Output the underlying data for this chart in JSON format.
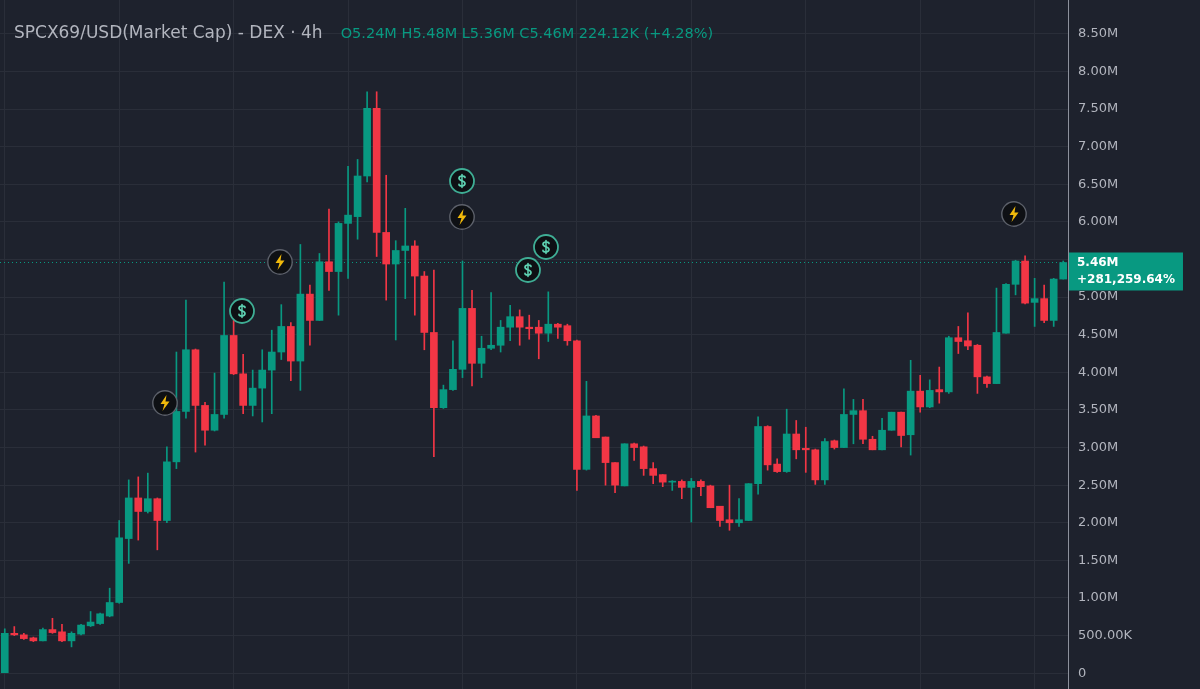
{
  "chart_data": {
    "type": "candlestick",
    "title": "SPCX69/USD(Market Cap) - DEX · 4h",
    "annotations": [
      "O5.24M H5.48M L5.36M C5.46M 224.12K (+4.28%)"
    ],
    "categories": [
      null,
      null,
      null,
      null,
      null,
      null,
      null,
      null,
      null,
      null,
      null,
      null,
      null,
      null,
      null,
      null,
      null,
      null,
      null,
      null,
      null,
      null,
      null,
      null,
      null,
      null,
      null,
      null,
      null,
      null,
      null,
      null,
      null,
      null,
      null,
      null,
      null,
      null,
      null,
      null,
      null,
      null,
      null,
      null,
      null,
      null,
      null,
      null,
      null,
      null,
      null,
      null,
      null,
      null,
      null,
      null,
      null,
      null,
      null,
      null,
      null,
      null,
      null,
      null,
      null,
      null,
      null,
      null,
      null,
      null,
      null,
      null,
      null,
      null,
      null,
      null,
      null,
      null,
      null,
      null,
      null,
      null,
      null,
      null,
      null,
      null,
      null,
      null,
      null,
      null,
      null,
      null,
      null,
      null,
      null,
      null,
      null,
      null,
      null,
      null,
      null,
      null,
      null,
      null,
      null,
      null,
      null,
      null,
      null,
      null,
      null,
      null
    ],
    "ohlc": [
      [
        0,
        590000,
        0,
        530000
      ],
      [
        530000,
        620000,
        500000,
        510000
      ],
      [
        510000,
        530000,
        450000,
        460000
      ],
      [
        470000,
        480000,
        420000,
        430000
      ],
      [
        430000,
        600000,
        430000,
        580000
      ],
      [
        580000,
        730000,
        530000,
        540000
      ],
      [
        550000,
        650000,
        420000,
        430000
      ],
      [
        430000,
        550000,
        350000,
        530000
      ],
      [
        520000,
        650000,
        510000,
        640000
      ],
      [
        630000,
        820000,
        620000,
        680000
      ],
      [
        660000,
        800000,
        650000,
        790000
      ],
      [
        760000,
        1130000,
        750000,
        940000
      ],
      [
        940000,
        2030000,
        930000,
        1800000
      ],
      [
        1790000,
        2570000,
        1460000,
        2330000
      ],
      [
        2330000,
        2610000,
        1770000,
        2150000
      ],
      [
        2150000,
        2660000,
        2130000,
        2320000
      ],
      [
        2320000,
        2330000,
        1640000,
        2030000
      ],
      [
        2030000,
        3010000,
        2000000,
        2810000
      ],
      [
        2810000,
        4270000,
        2720000,
        3480000
      ],
      [
        3480000,
        4960000,
        3390000,
        4300000
      ],
      [
        4300000,
        4310000,
        2940000,
        3560000
      ],
      [
        3560000,
        3600000,
        3030000,
        3230000
      ],
      [
        3230000,
        3990000,
        3220000,
        3440000
      ],
      [
        3440000,
        5200000,
        3390000,
        4490000
      ],
      [
        4490000,
        4690000,
        3970000,
        3980000
      ],
      [
        3980000,
        4240000,
        3450000,
        3560000
      ],
      [
        3560000,
        4030000,
        3420000,
        3790000
      ],
      [
        3790000,
        4300000,
        3340000,
        4030000
      ],
      [
        4030000,
        4560000,
        3450000,
        4270000
      ],
      [
        4270000,
        4900000,
        4170000,
        4610000
      ],
      [
        4610000,
        4660000,
        3890000,
        4150000
      ],
      [
        4150000,
        5700000,
        3760000,
        5040000
      ],
      [
        5040000,
        5160000,
        4360000,
        4690000
      ],
      [
        4690000,
        5580000,
        4690000,
        5470000
      ],
      [
        5470000,
        6170000,
        5090000,
        5340000
      ],
      [
        5340000,
        6000000,
        4760000,
        5980000
      ],
      [
        5980000,
        6740000,
        5250000,
        6090000
      ],
      [
        6070000,
        6830000,
        5770000,
        6610000
      ],
      [
        6610000,
        7730000,
        6530000,
        7510000
      ],
      [
        7510000,
        7730000,
        5540000,
        5860000
      ],
      [
        5860000,
        6620000,
        4960000,
        5440000
      ],
      [
        5440000,
        5750000,
        4430000,
        5620000
      ],
      [
        5620000,
        6180000,
        4980000,
        5680000
      ],
      [
        5680000,
        5750000,
        4760000,
        5280000
      ],
      [
        5280000,
        5340000,
        4300000,
        4530000
      ],
      [
        4530000,
        5360000,
        2880000,
        3530000
      ],
      [
        3530000,
        3830000,
        3520000,
        3770000
      ],
      [
        3770000,
        4420000,
        3760000,
        4040000
      ],
      [
        4040000,
        5480000,
        3930000,
        4850000
      ],
      [
        4850000,
        5090000,
        3820000,
        4120000
      ],
      [
        4120000,
        4480000,
        3930000,
        4320000
      ],
      [
        4320000,
        5060000,
        4300000,
        4360000
      ],
      [
        4360000,
        4690000,
        4270000,
        4600000
      ],
      [
        4600000,
        4890000,
        4420000,
        4740000
      ],
      [
        4740000,
        4830000,
        4360000,
        4600000
      ],
      [
        4600000,
        4760000,
        4440000,
        4580000
      ],
      [
        4600000,
        4690000,
        4180000,
        4520000
      ],
      [
        4520000,
        5070000,
        4410000,
        4640000
      ],
      [
        4640000,
        4650000,
        4450000,
        4600000
      ],
      [
        4620000,
        4640000,
        4360000,
        4420000
      ],
      [
        4420000,
        4430000,
        2430000,
        2710000
      ],
      [
        2710000,
        3880000,
        2700000,
        3420000
      ],
      [
        3420000,
        3430000,
        3130000,
        3130000
      ],
      [
        3140000,
        3140000,
        2500000,
        2800000
      ],
      [
        2800000,
        2800000,
        2400000,
        2500000
      ],
      [
        2490000,
        3050000,
        2490000,
        3050000
      ],
      [
        3050000,
        3060000,
        2830000,
        3000000
      ],
      [
        3010000,
        3020000,
        2630000,
        2720000
      ],
      [
        2720000,
        2800000,
        2520000,
        2630000
      ],
      [
        2640000,
        2640000,
        2480000,
        2540000
      ],
      [
        2540000,
        2560000,
        2430000,
        2550000
      ],
      [
        2550000,
        2570000,
        2320000,
        2470000
      ],
      [
        2470000,
        2590000,
        2010000,
        2550000
      ],
      [
        2550000,
        2570000,
        2360000,
        2480000
      ],
      [
        2490000,
        2500000,
        2200000,
        2200000
      ],
      [
        2220000,
        2220000,
        1950000,
        2030000
      ],
      [
        2040000,
        2500000,
        1900000,
        2000000
      ],
      [
        2000000,
        2320000,
        1950000,
        2040000
      ],
      [
        2030000,
        2520000,
        2030000,
        2520000
      ],
      [
        2520000,
        3410000,
        2380000,
        3280000
      ],
      [
        3280000,
        3290000,
        2700000,
        2770000
      ],
      [
        2780000,
        2850000,
        2670000,
        2680000
      ],
      [
        2680000,
        3510000,
        2670000,
        3180000
      ],
      [
        3180000,
        3360000,
        2850000,
        2970000
      ],
      [
        2990000,
        3270000,
        2670000,
        2970000
      ],
      [
        2970000,
        2980000,
        2510000,
        2570000
      ],
      [
        2570000,
        3120000,
        2510000,
        3080000
      ],
      [
        3090000,
        3100000,
        2980000,
        3000000
      ],
      [
        3000000,
        3780000,
        3000000,
        3440000
      ],
      [
        3440000,
        3640000,
        3050000,
        3490000
      ],
      [
        3490000,
        3640000,
        3050000,
        3110000
      ],
      [
        3110000,
        3150000,
        2970000,
        2970000
      ],
      [
        2970000,
        3390000,
        2970000,
        3230000
      ],
      [
        3230000,
        3470000,
        3230000,
        3470000
      ],
      [
        3470000,
        3470000,
        3010000,
        3160000
      ],
      [
        3170000,
        4160000,
        2900000,
        3750000
      ],
      [
        3750000,
        3960000,
        3470000,
        3540000
      ],
      [
        3540000,
        3900000,
        3530000,
        3760000
      ],
      [
        3770000,
        4070000,
        3590000,
        3740000
      ],
      [
        3740000,
        4480000,
        3720000,
        4460000
      ],
      [
        4460000,
        4610000,
        4250000,
        4410000
      ],
      [
        4420000,
        4790000,
        4300000,
        4350000
      ],
      [
        4360000,
        4370000,
        3720000,
        3940000
      ],
      [
        3940000,
        3950000,
        3800000,
        3850000
      ],
      [
        3850000,
        5120000,
        3850000,
        4530000
      ],
      [
        4520000,
        5180000,
        4520000,
        5170000
      ],
      [
        5170000,
        5490000,
        5030000,
        5480000
      ],
      [
        5480000,
        5550000,
        4910000,
        4920000
      ],
      [
        4930000,
        5250000,
        4610000,
        4980000
      ],
      [
        4980000,
        5160000,
        4660000,
        4690000
      ],
      [
        4690000,
        5250000,
        4610000,
        5240000
      ],
      [
        5240000,
        5480000,
        5240000,
        5460000
      ]
    ],
    "colors": [
      "#089981",
      "#f23645",
      "#f23645",
      "#f23645",
      "#089981",
      "#f23645",
      "#f23645",
      "#089981",
      "#089981",
      "#089981",
      "#089981",
      "#089981",
      "#089981",
      "#089981",
      "#f23645",
      "#089981",
      "#f23645",
      "#089981",
      "#089981",
      "#089981",
      "#f23645",
      "#f23645",
      "#089981",
      "#089981",
      "#f23645",
      "#f23645",
      "#089981",
      "#089981",
      "#089981",
      "#089981",
      "#f23645",
      "#089981",
      "#f23645",
      "#089981",
      "#f23645",
      "#089981",
      "#089981",
      "#089981",
      "#089981",
      "#f23645",
      "#f23645",
      "#089981",
      "#089981",
      "#f23645",
      "#f23645",
      "#f23645",
      "#089981",
      "#089981",
      "#089981",
      "#f23645",
      "#089981",
      "#089981",
      "#089981",
      "#089981",
      "#f23645",
      "#f23645",
      "#f23645",
      "#089981",
      "#f23645",
      "#f23645",
      "#f23645",
      "#089981",
      "#f23645",
      "#f23645",
      "#f23645",
      "#089981",
      "#f23645",
      "#f23645",
      "#f23645",
      "#f23645",
      "#089981",
      "#f23645",
      "#089981",
      "#f23645",
      "#f23645",
      "#f23645",
      "#f23645",
      "#089981",
      "#089981",
      "#089981",
      "#f23645",
      "#f23645",
      "#089981",
      "#f23645",
      "#f23645",
      "#f23645",
      "#089981",
      "#f23645",
      "#089981",
      "#089981",
      "#f23645",
      "#f23645",
      "#089981",
      "#089981",
      "#f23645",
      "#089981",
      "#f23645",
      "#089981",
      "#f23645",
      "#089981",
      "#f23645",
      "#f23645",
      "#f23645",
      "#f23645",
      "#089981",
      "#089981",
      "#089981",
      "#f23645",
      "#089981",
      "#f23645",
      "#089981",
      "#089981"
    ],
    "ylim": [
      -210000,
      8950000
    ],
    "yticks": [
      0,
      {
        "value": 500000,
        "label": "500.00K"
      },
      {
        "value": 1000000,
        "label": "1.00M"
      },
      {
        "value": 1500000,
        "label": "1.50M"
      },
      {
        "value": 2000000,
        "label": "2.00M"
      },
      {
        "value": 2500000,
        "label": "2.50M"
      },
      {
        "value": 3000000,
        "label": "3.00M"
      },
      {
        "value": 3500000,
        "label": "3.50M"
      },
      {
        "value": 4000000,
        "label": "4.00M"
      },
      {
        "value": 4500000,
        "label": "4.50M"
      },
      {
        "value": 5000000,
        "label": "5.00M"
      },
      {
        "value": 5500000,
        "label": null
      },
      {
        "value": 6000000,
        "label": "6.00M"
      },
      {
        "value": 6500000,
        "label": "6.50M"
      },
      {
        "value": 7000000,
        "label": "7.00M"
      },
      {
        "value": 7500000,
        "label": "7.50M"
      },
      {
        "value": 8000000,
        "label": "8.00M"
      },
      {
        "value": 8500000,
        "label": "8.50M"
      }
    ],
    "grid": true,
    "ref_lines": [
      {
        "axis": "y",
        "value": 5460000,
        "label": "5.46M\n+281,259.64%",
        "color": "#089981",
        "line_style": "dotted"
      }
    ]
  }
}
